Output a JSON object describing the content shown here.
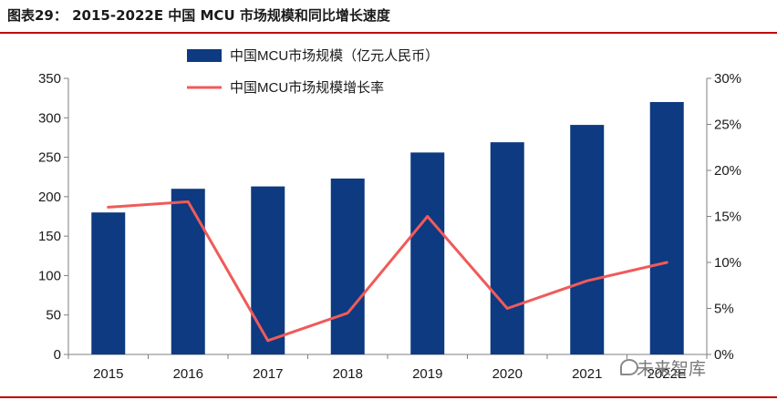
{
  "figure_title": "图表29：  2015-2022E 中国 MCU 市场规模和同比增长速度",
  "watermark": "未来智库",
  "colors": {
    "bar": "#0d3a80",
    "line": "#f05a5a",
    "rule": "#c00000",
    "axis": "#7f7f7f"
  },
  "chart_data": {
    "type": "bar",
    "categories": [
      "2015",
      "2016",
      "2017",
      "2018",
      "2019",
      "2020",
      "2021",
      "2022E"
    ],
    "series": [
      {
        "name": "中国MCU市场规模（亿元人民币）",
        "type": "bar",
        "axis": "left",
        "values": [
          180,
          210,
          213,
          223,
          256,
          269,
          291,
          320
        ]
      },
      {
        "name": "中国MCU市场规模增长率",
        "type": "line",
        "axis": "right",
        "values": [
          16,
          16.6,
          1.5,
          4.5,
          15,
          5,
          8,
          10
        ]
      }
    ],
    "y_left": {
      "min": 0,
      "max": 350,
      "ticks": [
        "0",
        "50",
        "100",
        "150",
        "200",
        "250",
        "300",
        "350"
      ]
    },
    "y_right": {
      "min": 0,
      "max": 30,
      "ticks": [
        "0%",
        "5%",
        "10%",
        "15%",
        "20%",
        "25%",
        "30%"
      ]
    },
    "legend_position": "top-center",
    "grid": false
  }
}
